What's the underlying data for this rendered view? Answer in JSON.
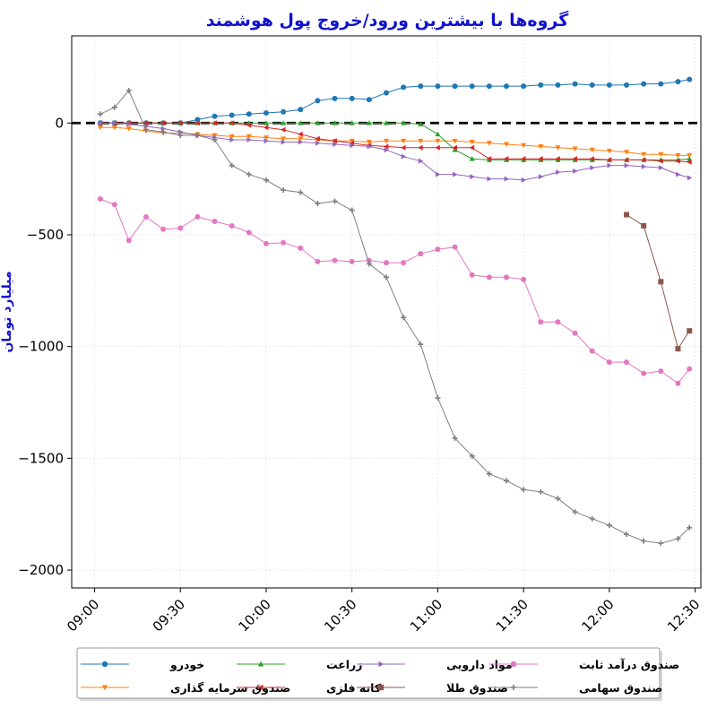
{
  "chart_data": {
    "type": "line",
    "title": "گروه‌ها با بیشترین ورود/خروج پول هوشمند",
    "xlabel": "",
    "ylabel": "میلیارد تومان",
    "x_ticks": [
      "09:00",
      "09:30",
      "10:00",
      "10:30",
      "11:00",
      "11:30",
      "12:00",
      "12:30"
    ],
    "y_ticks": [
      0,
      -500,
      -1000,
      -1500,
      -2000
    ],
    "xlim": [
      "08:52",
      "12:32"
    ],
    "ylim": [
      -2080,
      390
    ],
    "grid": true,
    "zero_line": {
      "y": 0,
      "style": "dashed",
      "color": "#000000"
    },
    "legend_position": "bottom",
    "x": [
      "09:02",
      "09:07",
      "09:12",
      "09:18",
      "09:24",
      "09:30",
      "09:36",
      "09:42",
      "09:48",
      "09:54",
      "10:00",
      "10:06",
      "10:12",
      "10:18",
      "10:24",
      "10:30",
      "10:36",
      "10:42",
      "10:48",
      "10:54",
      "11:00",
      "11:06",
      "11:12",
      "11:18",
      "11:24",
      "11:30",
      "11:36",
      "11:42",
      "11:48",
      "11:54",
      "12:00",
      "12:06",
      "12:12",
      "12:18",
      "12:24",
      "12:28"
    ],
    "series": [
      {
        "name": "خودرو",
        "color": "#1f77b4",
        "marker": "circle",
        "values": [
          0,
          0,
          0,
          0,
          0,
          0,
          15,
          30,
          35,
          40,
          45,
          50,
          60,
          100,
          110,
          110,
          105,
          135,
          160,
          165,
          165,
          165,
          165,
          165,
          165,
          165,
          170,
          170,
          175,
          170,
          170,
          170,
          175,
          175,
          185,
          195
        ]
      },
      {
        "name": "صندوق سرمایه گذاری",
        "color": "#ff7f0e",
        "marker": "triangle-down",
        "values": [
          -20,
          -20,
          -25,
          -35,
          -45,
          -45,
          -50,
          -55,
          -60,
          -60,
          -65,
          -70,
          -70,
          -75,
          -80,
          -80,
          -85,
          -80,
          -80,
          -80,
          -80,
          -80,
          -85,
          -90,
          -95,
          -100,
          -105,
          -110,
          -115,
          -120,
          -125,
          -130,
          -140,
          -140,
          -145,
          -145
        ]
      },
      {
        "name": "زراعت",
        "color": "#2ca02c",
        "marker": "triangle-up",
        "values": [
          0,
          0,
          0,
          0,
          0,
          0,
          0,
          0,
          0,
          0,
          0,
          0,
          0,
          0,
          0,
          0,
          0,
          0,
          0,
          -5,
          -50,
          -120,
          -160,
          -165,
          -165,
          -165,
          -165,
          -165,
          -165,
          -165,
          -165,
          -165,
          -165,
          -165,
          -165,
          -160
        ]
      },
      {
        "name": "کانه فلزی",
        "color": "#d62728",
        "marker": "triangle-left",
        "values": [
          0,
          0,
          0,
          0,
          0,
          0,
          0,
          0,
          0,
          -10,
          -20,
          -30,
          -50,
          -70,
          -80,
          -90,
          -100,
          -105,
          -110,
          -110,
          -110,
          -110,
          -110,
          -160,
          -160,
          -160,
          -160,
          -160,
          -160,
          -160,
          -165,
          -165,
          -165,
          -170,
          -170,
          -175
        ]
      },
      {
        "name": "مواد دارویی",
        "color": "#9467bd",
        "marker": "triangle-right",
        "values": [
          0,
          0,
          -5,
          -15,
          -25,
          -40,
          -55,
          -65,
          -75,
          -75,
          -80,
          -85,
          -85,
          -90,
          -95,
          -100,
          -105,
          -120,
          -150,
          -170,
          -230,
          -230,
          -240,
          -250,
          -250,
          -255,
          -240,
          -220,
          -215,
          -200,
          -190,
          -190,
          -195,
          -200,
          -230,
          -245
        ]
      },
      {
        "name": "صندوق طلا",
        "color": "#8c564b",
        "marker": "square",
        "values": [
          null,
          null,
          null,
          null,
          null,
          null,
          null,
          null,
          null,
          null,
          null,
          null,
          null,
          null,
          null,
          null,
          null,
          null,
          null,
          null,
          null,
          null,
          null,
          null,
          null,
          null,
          null,
          null,
          null,
          null,
          null,
          -410,
          -460,
          -710,
          -1010,
          -930
        ]
      },
      {
        "name": "صندوق درآمد ثابت",
        "color": "#e377c2",
        "marker": "circle",
        "values": [
          -340,
          -365,
          -525,
          -420,
          -475,
          -470,
          -420,
          -440,
          -460,
          -490,
          -540,
          -535,
          -560,
          -620,
          -615,
          -620,
          -615,
          -625,
          -625,
          -585,
          -565,
          -555,
          -680,
          -690,
          -690,
          -700,
          -890,
          -890,
          -940,
          -1020,
          -1070,
          -1070,
          -1120,
          -1110,
          -1165,
          -1100
        ]
      },
      {
        "name": "صندوق سهامی",
        "color": "#7f7f7f",
        "marker": "plus",
        "values": [
          40,
          70,
          145,
          -30,
          -40,
          -55,
          -55,
          -75,
          -190,
          -230,
          -255,
          -300,
          -310,
          -360,
          -350,
          -390,
          -630,
          -690,
          -870,
          -990,
          -1230,
          -1410,
          -1490,
          -1570,
          -1600,
          -1640,
          -1650,
          -1680,
          -1740,
          -1770,
          -1800,
          -1840,
          -1870,
          -1880,
          -1860,
          -1810
        ]
      }
    ]
  }
}
